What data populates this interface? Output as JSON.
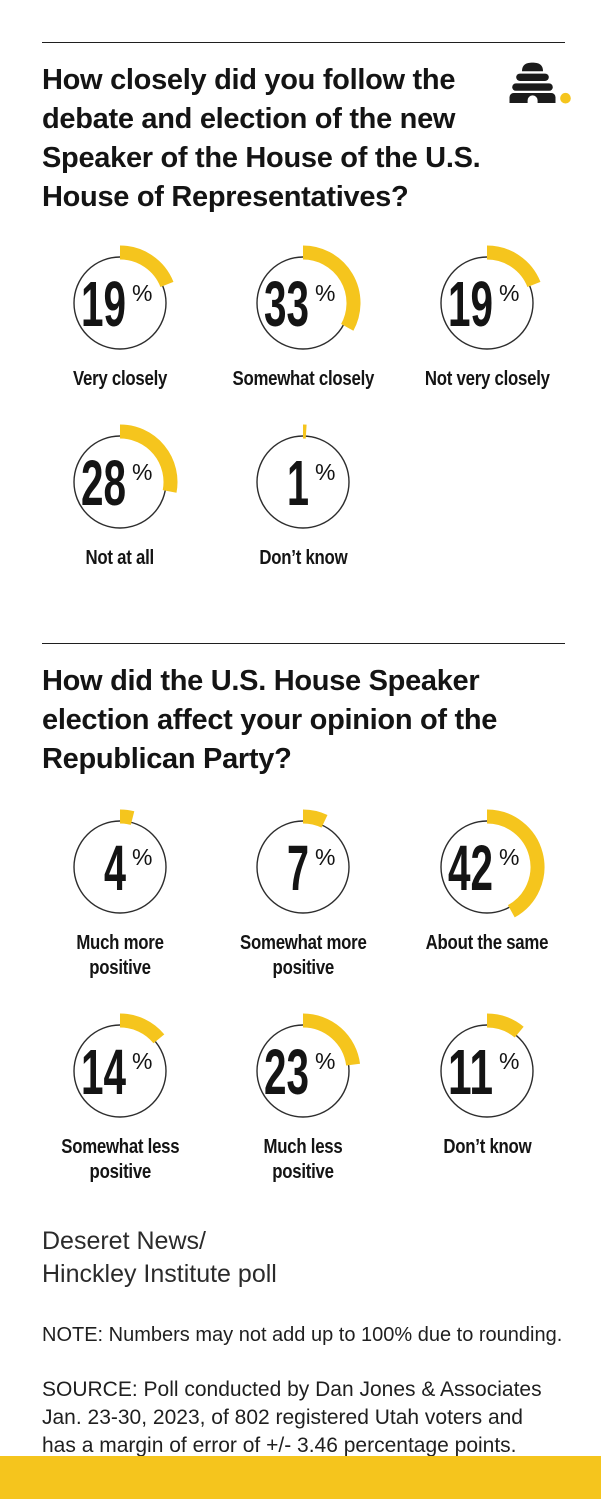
{
  "page": {
    "background": "#ffffff",
    "accent_yellow": "#F5C51D",
    "circle_stroke": "#2d2d2d",
    "text_color": "#141414"
  },
  "logo": {
    "icon": "beehive-icon",
    "hive_color": "#1b1b1b",
    "dot_color": "#F5C51D"
  },
  "sections": [
    {
      "question": "How closely did you follow the\ndebate and election of the new\nSpeaker of the House of the U.S.\nHouse of Representatives?",
      "items": [
        {
          "value": 19,
          "unit": "%",
          "label": "Very closely"
        },
        {
          "value": 33,
          "unit": "%",
          "label": "Somewhat closely"
        },
        {
          "value": 19,
          "unit": "%",
          "label": "Not very closely"
        },
        {
          "value": 28,
          "unit": "%",
          "label": "Not at all"
        },
        {
          "value": 1,
          "unit": "%",
          "label": "Don’t know"
        }
      ]
    },
    {
      "question": "How did the U.S. House Speaker\nelection affect your opinion of the\nRepublican Party?",
      "items": [
        {
          "value": 4,
          "unit": "%",
          "label": "Much more\npositive"
        },
        {
          "value": 7,
          "unit": "%",
          "label": "Somewhat more\npositive"
        },
        {
          "value": 42,
          "unit": "%",
          "label": "About the same"
        },
        {
          "value": 14,
          "unit": "%",
          "label": "Somewhat less\npositive"
        },
        {
          "value": 23,
          "unit": "%",
          "label": "Much less\npositive"
        },
        {
          "value": 11,
          "unit": "%",
          "label": "Don’t know"
        }
      ]
    }
  ],
  "footer": {
    "attribution": "Deseret News/\nHinckley Institute poll",
    "note": "NOTE: Numbers may not add up to 100% due to rounding.",
    "source": "SOURCE: Poll conducted by Dan Jones & Associates\nJan. 23-30, 2023, of 802 registered Utah voters and\nhas a margin of error of +/- 3.46 percentage points."
  },
  "chart_data": [
    {
      "type": "pie",
      "subtype": "donut-gauge-grid",
      "title": "How closely did you follow the debate and election of the new Speaker of the House of the U.S. House of Representatives?",
      "categories": [
        "Very closely",
        "Somewhat closely",
        "Not very closely",
        "Not at all",
        "Don't know"
      ],
      "values": [
        19,
        33,
        19,
        28,
        1
      ],
      "unit": "%",
      "accent_color": "#F5C51D",
      "legend": "none",
      "layout": "each value drawn as a yellow arc from 12 o'clock clockwise, value% of 360 degrees, around a thin outlined circle"
    },
    {
      "type": "pie",
      "subtype": "donut-gauge-grid",
      "title": "How did the U.S. House Speaker election affect your opinion of the Republican Party?",
      "categories": [
        "Much more positive",
        "Somewhat more positive",
        "About the same",
        "Somewhat less positive",
        "Much less positive",
        "Don't know"
      ],
      "values": [
        4,
        7,
        42,
        14,
        23,
        11
      ],
      "unit": "%",
      "accent_color": "#F5C51D",
      "legend": "none",
      "layout": "each value drawn as a yellow arc from 12 o'clock clockwise, value% of 360 degrees, around a thin outlined circle"
    }
  ]
}
